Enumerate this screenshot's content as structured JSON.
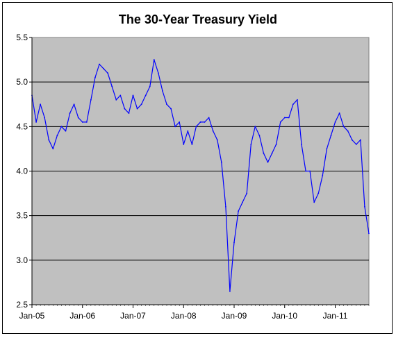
{
  "chart_data": {
    "type": "line",
    "title": "The 30-Year Treasury Yield",
    "xlabel": "",
    "ylabel": "",
    "ylim": [
      2.5,
      5.5
    ],
    "xlim": [
      "2005-01",
      "2011-09"
    ],
    "grid": "horizontal",
    "colors": {
      "line": "#0000FF",
      "plot_bg": "#C0C0C0",
      "grid": "#000000"
    },
    "y_ticks": [
      "2.5",
      "3.0",
      "3.5",
      "4.0",
      "4.5",
      "5.0",
      "5.5"
    ],
    "x_ticks": [
      "Jan-05",
      "Jan-06",
      "Jan-07",
      "Jan-08",
      "Jan-09",
      "Jan-10",
      "Jan-11"
    ],
    "series": [
      {
        "x": [
          "2005-01",
          "2005-02",
          "2005-03",
          "2005-04",
          "2005-05",
          "2005-06",
          "2005-07",
          "2005-08",
          "2005-09",
          "2005-10",
          "2005-11",
          "2005-12",
          "2006-01",
          "2006-02",
          "2006-03",
          "2006-04",
          "2006-05",
          "2006-06",
          "2006-07",
          "2006-08",
          "2006-09",
          "2006-10",
          "2006-11",
          "2006-12",
          "2007-01",
          "2007-02",
          "2007-03",
          "2007-04",
          "2007-05",
          "2007-06",
          "2007-07",
          "2007-08",
          "2007-09",
          "2007-10",
          "2007-11",
          "2007-12",
          "2008-01",
          "2008-02",
          "2008-03",
          "2008-04",
          "2008-05",
          "2008-06",
          "2008-07",
          "2008-08",
          "2008-09",
          "2008-10",
          "2008-11",
          "2008-12",
          "2009-01",
          "2009-02",
          "2009-03",
          "2009-04",
          "2009-05",
          "2009-06",
          "2009-07",
          "2009-08",
          "2009-09",
          "2009-10",
          "2009-11",
          "2009-12",
          "2010-01",
          "2010-02",
          "2010-03",
          "2010-04",
          "2010-05",
          "2010-06",
          "2010-07",
          "2010-08",
          "2010-09",
          "2010-10",
          "2010-11",
          "2010-12",
          "2011-01",
          "2011-02",
          "2011-03",
          "2011-04",
          "2011-05",
          "2011-06",
          "2011-07",
          "2011-08",
          "2011-09"
        ],
        "values": [
          4.85,
          4.55,
          4.75,
          4.6,
          4.35,
          4.25,
          4.4,
          4.5,
          4.45,
          4.65,
          4.75,
          4.6,
          4.55,
          4.55,
          4.8,
          5.05,
          5.2,
          5.15,
          5.1,
          4.95,
          4.8,
          4.85,
          4.7,
          4.65,
          4.85,
          4.7,
          4.75,
          4.85,
          4.95,
          5.25,
          5.1,
          4.9,
          4.75,
          4.7,
          4.5,
          4.55,
          4.3,
          4.45,
          4.3,
          4.5,
          4.55,
          4.55,
          4.6,
          4.45,
          4.35,
          4.1,
          3.6,
          2.65,
          3.2,
          3.55,
          3.65,
          3.75,
          4.3,
          4.5,
          4.4,
          4.2,
          4.1,
          4.2,
          4.3,
          4.55,
          4.6,
          4.6,
          4.75,
          4.8,
          4.3,
          4.0,
          4.0,
          3.65,
          3.75,
          3.95,
          4.25,
          4.4,
          4.55,
          4.65,
          4.5,
          4.45,
          4.35,
          4.3,
          4.35,
          3.6,
          3.3
        ]
      }
    ]
  }
}
